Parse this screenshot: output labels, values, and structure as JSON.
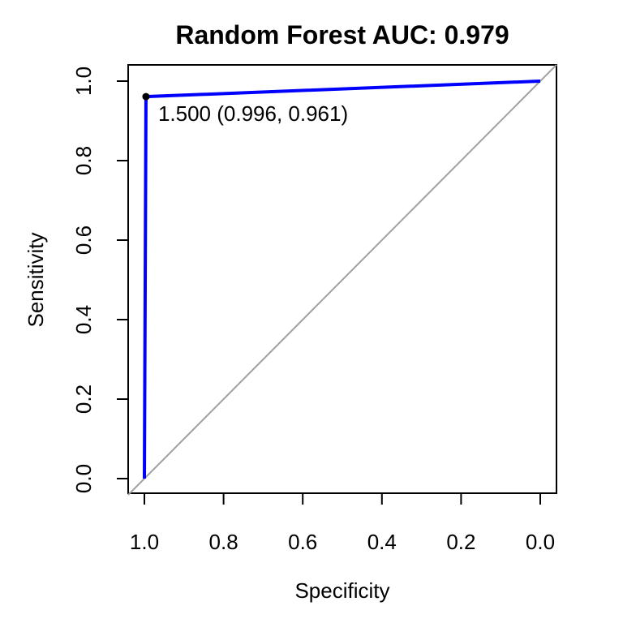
{
  "chart_data": {
    "type": "line",
    "title": "Random Forest AUC: 0.979",
    "xlabel": "Specificity",
    "ylabel": "Sensitivity",
    "x_reversed": true,
    "xlim": [
      1.0,
      0.0
    ],
    "ylim": [
      0.0,
      1.0
    ],
    "xticks": [
      1.0,
      0.8,
      0.6,
      0.4,
      0.2,
      0.0
    ],
    "xtick_labels": [
      "1.0",
      "0.8",
      "0.6",
      "0.4",
      "0.2",
      "0.0"
    ],
    "yticks": [
      0.0,
      0.2,
      0.4,
      0.6,
      0.8,
      1.0
    ],
    "ytick_labels": [
      "0.0",
      "0.2",
      "0.4",
      "0.6",
      "0.8",
      "1.0"
    ],
    "grid": false,
    "series": [
      {
        "color": "#0000ff",
        "points": [
          {
            "specificity": 1.0,
            "sensitivity": 0.0
          },
          {
            "specificity": 0.996,
            "sensitivity": 0.961
          },
          {
            "specificity": 0.0,
            "sensitivity": 1.0
          }
        ]
      }
    ],
    "reference_line": {
      "color": "#a0a0a0",
      "from": {
        "specificity": 1.0,
        "sensitivity": 0.0
      },
      "to": {
        "specificity": 0.0,
        "sensitivity": 1.0
      }
    },
    "threshold_point": {
      "specificity": 0.996,
      "sensitivity": 0.961,
      "label": "1.500 (0.996, 0.961)",
      "color": "#000000"
    }
  }
}
